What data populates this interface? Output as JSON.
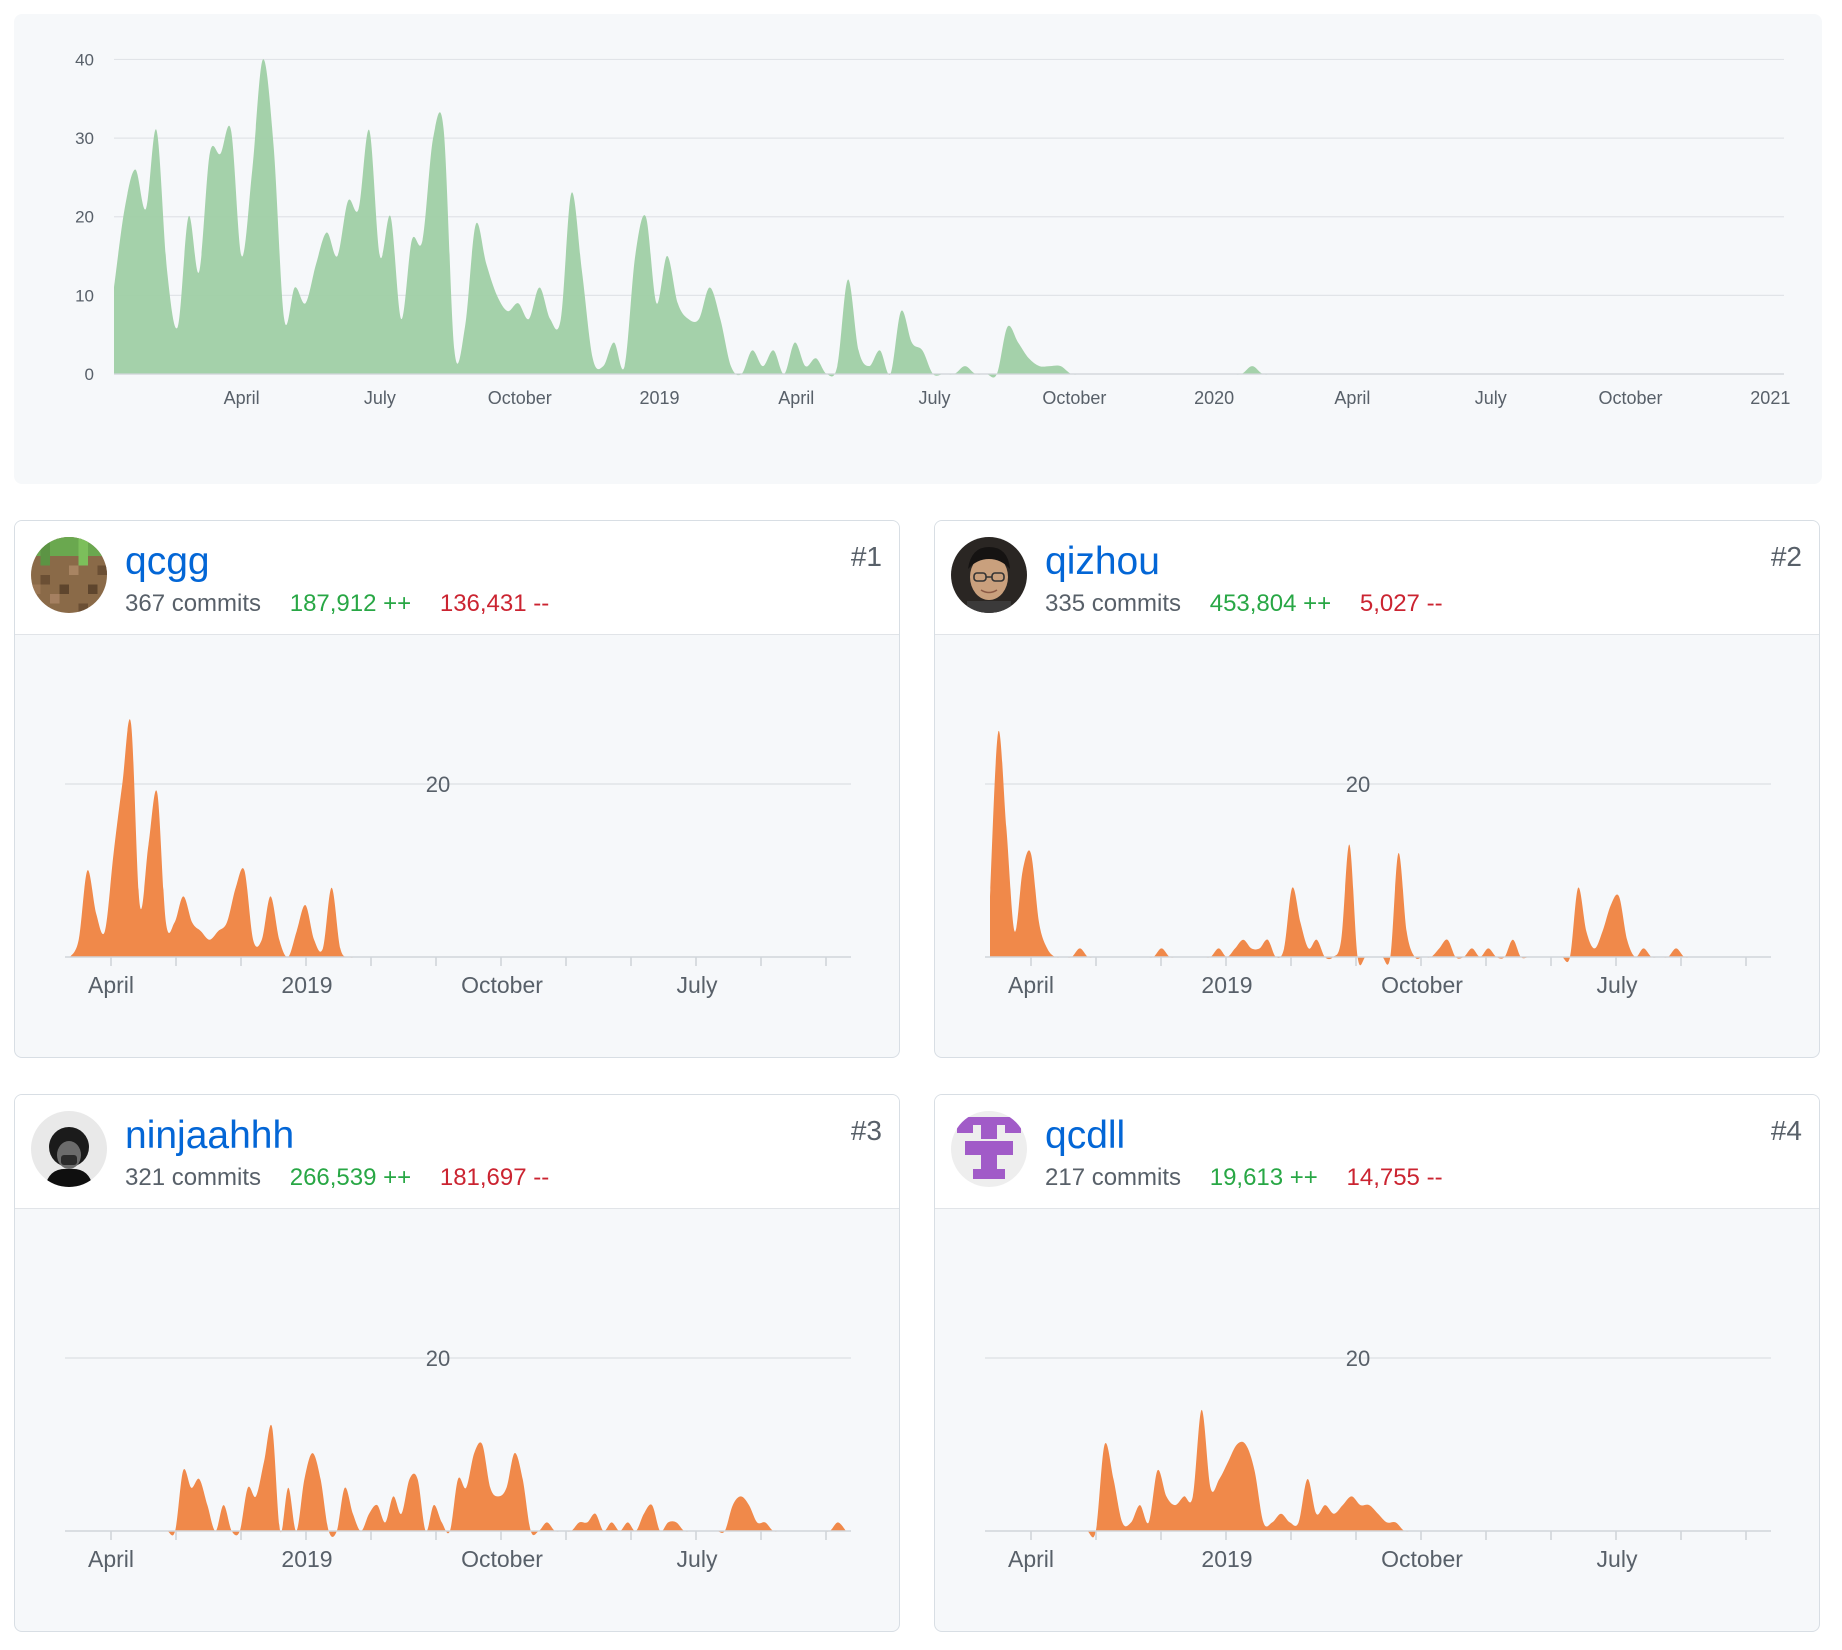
{
  "colors": {
    "overview_fill": "#9fcfa5",
    "contributor_fill": "#f0894a",
    "link": "#0366d6",
    "additions": "#28a745",
    "deletions": "#cb2431"
  },
  "chart_data": [
    {
      "type": "area",
      "x_start": "2018-01-07",
      "x_end": "2021-01-10",
      "xlim": [
        "2018-01-07",
        "2021-01-10"
      ],
      "ylim": [
        0,
        44
      ],
      "y_ticks": [
        0,
        10,
        20,
        30,
        40
      ],
      "x_ticks": [
        {
          "date": "2018-04-01",
          "label": "April"
        },
        {
          "date": "2018-07-01",
          "label": "July"
        },
        {
          "date": "2018-10-01",
          "label": "October"
        },
        {
          "date": "2019-01-01",
          "label": "2019"
        },
        {
          "date": "2019-04-01",
          "label": "April"
        },
        {
          "date": "2019-07-01",
          "label": "July"
        },
        {
          "date": "2019-10-01",
          "label": "October"
        },
        {
          "date": "2020-01-01",
          "label": "2020"
        },
        {
          "date": "2020-04-01",
          "label": "April"
        },
        {
          "date": "2020-07-01",
          "label": "July"
        },
        {
          "date": "2020-10-01",
          "label": "October"
        },
        {
          "date": "2021-01-01",
          "label": "2021"
        }
      ],
      "grid": true,
      "values": [
        11,
        21,
        26,
        21,
        31,
        13,
        6,
        20,
        13,
        28,
        28,
        31,
        15,
        26,
        40,
        29,
        7,
        11,
        9,
        14,
        18,
        15,
        22,
        21,
        31,
        15,
        20,
        7,
        17,
        17,
        30,
        31,
        3,
        6,
        19,
        14,
        10,
        8,
        9,
        7,
        11,
        7,
        7,
        23,
        13,
        2,
        1,
        4,
        1,
        15,
        20,
        9,
        15,
        9,
        7,
        7,
        11,
        7,
        1,
        0,
        3,
        1,
        3,
        0,
        4,
        1,
        2,
        0,
        1,
        12,
        3,
        1,
        3,
        0,
        8,
        4,
        3,
        0,
        0,
        0,
        1,
        0,
        0,
        0,
        6,
        4,
        2,
        1,
        1,
        1,
        0,
        0,
        0,
        0,
        0,
        0,
        0,
        0,
        0,
        0,
        0,
        0,
        0,
        0,
        0,
        0,
        0,
        1,
        0,
        0,
        0,
        0,
        0,
        0,
        0,
        0,
        0,
        0,
        0,
        0,
        0,
        0,
        0,
        0,
        0,
        0,
        0,
        0,
        0,
        0,
        0,
        0,
        0,
        0,
        0,
        0,
        0,
        0,
        0,
        0,
        0,
        0,
        0,
        0,
        0,
        0,
        0,
        0,
        0,
        0,
        0,
        0,
        0,
        0,
        0,
        0,
        0,
        0
      ]
    }
  ],
  "contributors": [
    {
      "login": "qcgg",
      "rank": "#1",
      "commits_text": "367 commits",
      "additions_text": "187,912 ++",
      "deletions_text": "136,431 --",
      "avatar": "pixel-dirt-block-avatar",
      "chart": {
        "type": "area",
        "ytick": "20",
        "ylim": [
          0,
          28
        ],
        "x_labels": [
          "April",
          "2019",
          "October",
          "July"
        ],
        "values": [
          0,
          2,
          10,
          5,
          3,
          12,
          20,
          27,
          6,
          13,
          19,
          4,
          4,
          7,
          4,
          3,
          2,
          3,
          4,
          8,
          10,
          2,
          2,
          7,
          2,
          0,
          3,
          6,
          2,
          1,
          8,
          1,
          0,
          0,
          0,
          0,
          0,
          0,
          0,
          0,
          0,
          0,
          0,
          0,
          0,
          0,
          0,
          0,
          0,
          0,
          0,
          0,
          0,
          0,
          0,
          0,
          0,
          0,
          0,
          0,
          0,
          0,
          0,
          0,
          0,
          0,
          0,
          0,
          0,
          0,
          0,
          0,
          0,
          0,
          0,
          0,
          0,
          0,
          0,
          0,
          0,
          0,
          0,
          0,
          0,
          0,
          0,
          0,
          0,
          0
        ]
      }
    },
    {
      "login": "qizhou",
      "rank": "#2",
      "commits_text": "335 commits",
      "additions_text": "453,804 ++",
      "deletions_text": "5,027 --",
      "avatar": "person-photo-avatar",
      "chart": {
        "type": "area",
        "ytick": "20",
        "ylim": [
          0,
          28
        ],
        "x_labels": [
          "April",
          "2019",
          "October",
          "July"
        ],
        "values": [
          7,
          26,
          15,
          3,
          10,
          12,
          4,
          1,
          0,
          0,
          0,
          1,
          0,
          0,
          0,
          0,
          0,
          0,
          0,
          0,
          0,
          1,
          0,
          0,
          0,
          0,
          0,
          0,
          1,
          0,
          1,
          2,
          1,
          1,
          2,
          0,
          1,
          8,
          4,
          1,
          2,
          0,
          0,
          2,
          13,
          0,
          0,
          0,
          0,
          0,
          12,
          3,
          0,
          0,
          0,
          1,
          2,
          0,
          0,
          1,
          0,
          1,
          0,
          0,
          2,
          0,
          0,
          0,
          0,
          0,
          0,
          0,
          8,
          3,
          1,
          3,
          6,
          7,
          2,
          0,
          1,
          0,
          0,
          0,
          1,
          0,
          0,
          0,
          0,
          0,
          0,
          0,
          0,
          0,
          0,
          0
        ]
      }
    },
    {
      "login": "ninjaahhh",
      "rank": "#3",
      "commits_text": "321 commits",
      "additions_text": "266,539 ++",
      "deletions_text": "181,697 --",
      "avatar": "dark-photo-avatar",
      "chart": {
        "type": "area",
        "ytick": "20",
        "ylim": [
          0,
          28
        ],
        "x_labels": [
          "April",
          "2019",
          "October",
          "July"
        ],
        "values": [
          0,
          0,
          0,
          0,
          0,
          0,
          0,
          0,
          0,
          0,
          0,
          0,
          0,
          0,
          7,
          5,
          6,
          3,
          0,
          3,
          0,
          0,
          5,
          4,
          8,
          12,
          0,
          5,
          0,
          6,
          9,
          6,
          0,
          0,
          5,
          2,
          0,
          2,
          3,
          1,
          4,
          2,
          6,
          6,
          0,
          3,
          1,
          0,
          6,
          5,
          9,
          10,
          5,
          4,
          5,
          9,
          6,
          0,
          0,
          1,
          0,
          0,
          0,
          1,
          1,
          2,
          0,
          1,
          0,
          1,
          0,
          2,
          3,
          0,
          1,
          1,
          0,
          0,
          0,
          0,
          0,
          0,
          3,
          4,
          3,
          1,
          1,
          0,
          0,
          0,
          0,
          0,
          0,
          0,
          0,
          1,
          0
        ]
      }
    },
    {
      "login": "qcdll",
      "rank": "#4",
      "commits_text": "217 commits",
      "additions_text": "19,613 ++",
      "deletions_text": "14,755 --",
      "avatar": "purple-identicon-avatar",
      "chart": {
        "type": "area",
        "ytick": "20",
        "ylim": [
          0,
          28
        ],
        "x_labels": [
          "April",
          "2019",
          "October",
          "July"
        ],
        "values": [
          0,
          0,
          0,
          0,
          0,
          0,
          0,
          0,
          0,
          0,
          0,
          0,
          0,
          10,
          6,
          1,
          1,
          3,
          1,
          7,
          4,
          3,
          4,
          4,
          14,
          5,
          6,
          8,
          10,
          10,
          7,
          1,
          1,
          2,
          1,
          1,
          6,
          2,
          3,
          2,
          3,
          4,
          3,
          3,
          2,
          1,
          1,
          0,
          0,
          0,
          0,
          0,
          0,
          0,
          0,
          0,
          0,
          0,
          0,
          0,
          0,
          0,
          0,
          0,
          0,
          0,
          0,
          0,
          0,
          0,
          0,
          0,
          0,
          0,
          0,
          0,
          0,
          0,
          0,
          0,
          0,
          0,
          0,
          0,
          0,
          0,
          0,
          0,
          0
        ]
      }
    }
  ]
}
